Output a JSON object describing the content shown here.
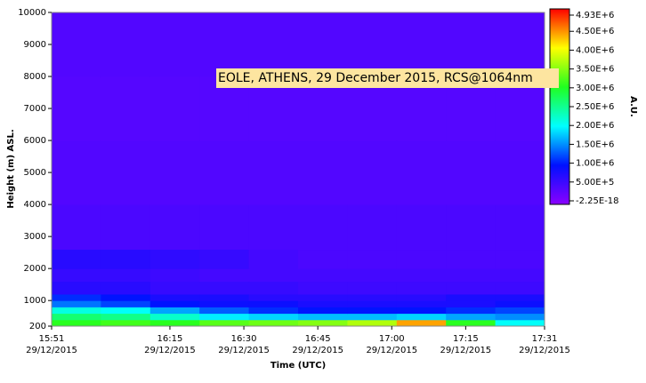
{
  "chart_data": {
    "type": "heatmap",
    "annotation": "EOLE, ATHENS, 29 December 2015, RCS@1064nm",
    "x_label": "Time (UTC)",
    "y_label": "Height (m) ASL.",
    "colorbar_label": "A.U.",
    "xlim": [
      951,
      1051
    ],
    "ylim": [
      200,
      10000
    ],
    "xticks": [
      {
        "value": 951,
        "label": "15:51 29/12/2015"
      },
      {
        "value": 975,
        "label": "16:15 29/12/2015"
      },
      {
        "value": 990,
        "label": "16:30 29/12/2015"
      },
      {
        "value": 1005,
        "label": "16:45 29/12/2015"
      },
      {
        "value": 1020,
        "label": "17:00 29/12/2015"
      },
      {
        "value": 1035,
        "label": "17:15 29/12/2015"
      },
      {
        "value": 1051,
        "label": "17:31 29/12/2015"
      }
    ],
    "yticks": [
      200,
      1000,
      2000,
      3000,
      4000,
      5000,
      6000,
      7000,
      8000,
      9000,
      10000
    ],
    "xbins": [
      951,
      961,
      971,
      981,
      991,
      1001,
      1011,
      1021,
      1031,
      1041,
      1051
    ],
    "ybins": [
      200,
      400,
      600,
      800,
      1000,
      1200,
      1600,
      2000,
      2600,
      4000,
      6000,
      8000,
      10000
    ],
    "z": [
      [
        3000000,
        3100000,
        3000000,
        3200000,
        3300000,
        3400000,
        3600000,
        4300000,
        3000000,
        2000000
      ],
      [
        2600000,
        2500000,
        2200000,
        1900000,
        1800000,
        1700000,
        1700000,
        1800000,
        1600000,
        1500000
      ],
      [
        2100000,
        2000000,
        1600000,
        1300000,
        1100000,
        1000000,
        1000000,
        1000000,
        1100000,
        1200000
      ],
      [
        1400000,
        1200000,
        1000000,
        900000,
        900000,
        800000,
        800000,
        800000,
        800000,
        900000
      ],
      [
        1100000,
        1000000,
        800000,
        800000,
        700000,
        700000,
        700000,
        700000,
        800000,
        800000
      ],
      [
        700000,
        700000,
        600000,
        600000,
        600000,
        550000,
        550000,
        550000,
        550000,
        550000
      ],
      [
        600000,
        600000,
        550000,
        500000,
        500000,
        500000,
        500000,
        500000,
        500000,
        500000
      ],
      [
        700000,
        700000,
        650000,
        600000,
        500000,
        450000,
        450000,
        450000,
        450000,
        450000
      ],
      [
        450000,
        450000,
        450000,
        450000,
        450000,
        450000,
        450000,
        450000,
        450000,
        450000
      ],
      [
        400000,
        400000,
        400000,
        400000,
        400000,
        400000,
        400000,
        400000,
        400000,
        400000
      ],
      [
        380000,
        380000,
        380000,
        380000,
        380000,
        380000,
        380000,
        380000,
        380000,
        380000
      ],
      [
        400000,
        400000,
        400000,
        400000,
        400000,
        400000,
        400000,
        400000,
        400000,
        400000
      ]
    ],
    "zlim": [
      -2.25e-18,
      4930000
    ],
    "zticks": [
      {
        "value": 4930000,
        "label": "4.93E+6"
      },
      {
        "value": 4500000,
        "label": "4.50E+6"
      },
      {
        "value": 4000000,
        "label": "4.00E+6"
      },
      {
        "value": 3500000,
        "label": "3.50E+6"
      },
      {
        "value": 3000000,
        "label": "3.00E+6"
      },
      {
        "value": 2500000,
        "label": "2.50E+6"
      },
      {
        "value": 2000000,
        "label": "2.00E+6"
      },
      {
        "value": 1500000,
        "label": "1.50E+6"
      },
      {
        "value": 1000000,
        "label": "1.00E+6"
      },
      {
        "value": 500000,
        "label": "5.00E+5"
      },
      {
        "value": -2.25e-18,
        "label": "-2.25E-18"
      }
    ],
    "colorscale": [
      "#8a00ff",
      "#0010ff",
      "#00ffff",
      "#20ff20",
      "#ffff00",
      "#ff0000"
    ]
  }
}
